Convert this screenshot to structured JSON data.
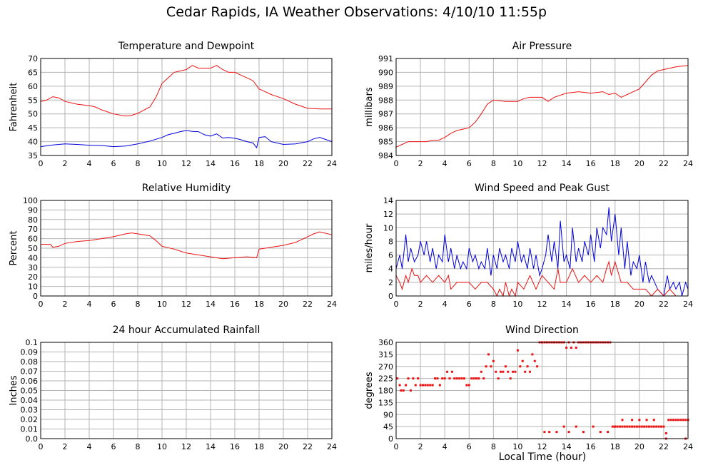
{
  "page": {
    "title": "Cedar Rapids, IA Weather Observations: 4/10/10 11:55p",
    "x_axis_label": "Local Time (hour)"
  },
  "colors": {
    "red": "#ee1111",
    "blue": "#0000dd",
    "grid": "#b4b4b4",
    "frame": "#000000"
  },
  "chart_data": [
    {
      "type": "line",
      "title": "Temperature and Dewpoint",
      "xlabel": "",
      "ylabel": "Fahrenheit",
      "xlim": [
        0,
        24
      ],
      "ylim": [
        35,
        70
      ],
      "x_ticks": [
        0,
        2,
        4,
        6,
        8,
        10,
        12,
        14,
        16,
        18,
        20,
        22,
        24
      ],
      "y_ticks": [
        35,
        40,
        45,
        50,
        55,
        60,
        65,
        70
      ],
      "grid": true,
      "series": [
        {
          "color": "#ee1111",
          "style": "line",
          "x": [
            0,
            0.5,
            1,
            1.5,
            2,
            3,
            4,
            4.5,
            5,
            6,
            7,
            7.5,
            8,
            9,
            9.5,
            10,
            10.5,
            11,
            11.5,
            12,
            12.5,
            13,
            13.5,
            14,
            14.5,
            15,
            15.5,
            16,
            16.5,
            17,
            17.5,
            18,
            18.5,
            19,
            20,
            21,
            22,
            23,
            24
          ],
          "y": [
            54.5,
            55,
            56.2,
            55.8,
            54.5,
            53.5,
            53,
            52.5,
            51.5,
            50,
            49.2,
            49.5,
            50.2,
            52.5,
            56,
            61,
            63,
            65,
            65.5,
            66,
            67.5,
            66.5,
            66.5,
            66.5,
            67.5,
            66,
            65,
            65,
            64,
            63,
            62,
            59,
            58,
            57,
            55.5,
            53.5,
            52,
            51.8,
            51.8
          ]
        },
        {
          "color": "#0000dd",
          "style": "line",
          "x": [
            0,
            1,
            2,
            3,
            4,
            5,
            6,
            7,
            8,
            9,
            10,
            10.5,
            11,
            11.5,
            12,
            12.5,
            13,
            13.5,
            14,
            14.5,
            15,
            15.5,
            16,
            16.5,
            17,
            17.5,
            17.8,
            18,
            18.5,
            19,
            20,
            21,
            22,
            22.5,
            23,
            24
          ],
          "y": [
            38.2,
            38.8,
            39.2,
            39,
            38.7,
            38.6,
            38.2,
            38.4,
            39.2,
            40.2,
            41.5,
            42.5,
            43,
            43.6,
            44,
            43.7,
            43.6,
            42.5,
            42,
            42.8,
            41.3,
            41.5,
            41.2,
            40.7,
            40,
            39.5,
            37.8,
            41.5,
            41.8,
            40,
            39,
            39.2,
            40,
            41,
            41.5,
            40
          ]
        }
      ]
    },
    {
      "type": "line",
      "title": "Air Pressure",
      "xlabel": "",
      "ylabel": "millibars",
      "xlim": [
        0,
        24
      ],
      "ylim": [
        984,
        991
      ],
      "x_ticks": [
        0,
        2,
        4,
        6,
        8,
        10,
        12,
        14,
        16,
        18,
        20,
        22,
        24
      ],
      "y_ticks": [
        984,
        985,
        986,
        987,
        988,
        989,
        990,
        991
      ],
      "grid": true,
      "series": [
        {
          "color": "#ee1111",
          "style": "line",
          "x": [
            0,
            0.5,
            1,
            1.5,
            2,
            2.5,
            3,
            3.5,
            4,
            4.5,
            5,
            5.5,
            6,
            6.5,
            7,
            7.5,
            8,
            9,
            10,
            10.5,
            11,
            11.5,
            12,
            12.5,
            13,
            14,
            15,
            16,
            17,
            17.5,
            18,
            18.5,
            19,
            20,
            20.5,
            21,
            21.5,
            22,
            23,
            24
          ],
          "y": [
            984.6,
            984.8,
            985,
            985,
            985,
            985,
            985.1,
            985.1,
            985.3,
            985.6,
            985.8,
            985.9,
            986,
            986.4,
            987,
            987.7,
            988,
            987.9,
            987.9,
            988.1,
            988.2,
            988.2,
            988.2,
            987.9,
            988.2,
            988.5,
            988.6,
            988.5,
            988.6,
            988.4,
            988.5,
            988.2,
            988.4,
            988.8,
            989.3,
            989.8,
            990.1,
            990.2,
            990.4,
            990.5
          ]
        }
      ]
    },
    {
      "type": "line",
      "title": "Relative Humidity",
      "xlabel": "",
      "ylabel": "Percent",
      "xlim": [
        0,
        24
      ],
      "ylim": [
        0,
        100
      ],
      "x_ticks": [
        0,
        2,
        4,
        6,
        8,
        10,
        12,
        14,
        16,
        18,
        20,
        22,
        24
      ],
      "y_ticks": [
        0,
        10,
        20,
        30,
        40,
        50,
        60,
        70,
        80,
        90,
        100
      ],
      "grid": true,
      "series": [
        {
          "color": "#ee1111",
          "style": "line",
          "x": [
            0,
            0.8,
            1,
            1.5,
            2,
            3,
            4,
            5,
            6,
            7,
            7.5,
            8,
            9,
            9.5,
            10,
            11,
            12,
            13,
            14,
            15,
            16,
            17,
            17.5,
            17.8,
            18,
            19,
            20,
            21,
            22,
            22.5,
            23,
            24
          ],
          "y": [
            54,
            54,
            51,
            52,
            55,
            57,
            58,
            60,
            62,
            65,
            66,
            65,
            63,
            58,
            52,
            49,
            45,
            43,
            41,
            39,
            40,
            41,
            40.5,
            40,
            49,
            51,
            53,
            56,
            62,
            65,
            67,
            64
          ]
        }
      ]
    },
    {
      "type": "line",
      "title": "Wind Speed and Peak Gust",
      "xlabel": "",
      "ylabel": "miles/hour",
      "xlim": [
        0,
        24
      ],
      "ylim": [
        0,
        14
      ],
      "x_ticks": [
        0,
        2,
        4,
        6,
        8,
        10,
        12,
        14,
        16,
        18,
        20,
        22,
        24
      ],
      "y_ticks": [
        0,
        2,
        4,
        6,
        8,
        10,
        12,
        14
      ],
      "grid": true,
      "series": [
        {
          "color": "#0000dd",
          "style": "line",
          "x": [
            0,
            0.3,
            0.5,
            0.8,
            1,
            1.2,
            1.5,
            1.8,
            2,
            2.3,
            2.5,
            2.8,
            3,
            3.3,
            3.5,
            3.8,
            4,
            4.3,
            4.5,
            4.8,
            5,
            5.3,
            5.5,
            5.8,
            6,
            6.3,
            6.5,
            6.8,
            7,
            7.3,
            7.5,
            7.8,
            8,
            8.3,
            8.5,
            8.8,
            9,
            9.3,
            9.5,
            9.8,
            10,
            10.3,
            10.5,
            10.8,
            11,
            11.3,
            11.5,
            11.8,
            12,
            12.3,
            12.5,
            12.8,
            13,
            13.3,
            13.5,
            13.8,
            14,
            14.3,
            14.5,
            14.8,
            15,
            15.3,
            15.5,
            15.8,
            16,
            16.3,
            16.5,
            16.8,
            17,
            17.3,
            17.5,
            17.7,
            18,
            18.3,
            18.5,
            18.8,
            19,
            19.3,
            19.5,
            19.8,
            20,
            20.3,
            20.5,
            20.8,
            21,
            21.5,
            22,
            22.3,
            22.5,
            22.8,
            23,
            23.3,
            23.5,
            23.8,
            24
          ],
          "y": [
            4,
            6,
            4,
            9,
            5,
            7,
            5,
            6,
            8,
            6,
            8,
            5,
            7,
            4,
            6,
            5,
            9,
            5,
            7,
            4,
            6,
            4,
            5,
            4,
            7,
            5,
            6,
            4,
            5,
            4,
            7,
            3,
            6,
            4,
            7,
            5,
            6,
            4,
            7,
            5,
            8,
            5,
            6,
            4,
            7,
            4,
            6,
            3,
            4,
            6,
            9,
            5,
            8,
            4,
            11,
            5,
            6,
            4,
            10,
            5,
            7,
            5,
            8,
            6,
            9,
            5,
            10,
            7,
            10,
            9,
            13,
            8,
            12,
            6,
            10,
            4,
            8,
            3,
            5,
            4,
            6,
            2,
            5,
            2,
            3,
            1,
            0,
            3,
            1,
            2,
            1,
            2,
            0,
            2,
            1
          ]
        },
        {
          "color": "#ee1111",
          "style": "line",
          "x": [
            0,
            0.3,
            0.5,
            0.8,
            1,
            1.3,
            1.5,
            1.8,
            2,
            2.5,
            3,
            3.5,
            4,
            4.3,
            4.5,
            5,
            5.5,
            6,
            6.5,
            7,
            7.5,
            8,
            8.3,
            8.5,
            8.8,
            9,
            9.3,
            9.5,
            9.8,
            10,
            10.5,
            11,
            11.5,
            12,
            12.5,
            13,
            13.3,
            13.5,
            14,
            14.5,
            15,
            15.5,
            16,
            16.5,
            17,
            17.3,
            17.5,
            17.7,
            18,
            18.5,
            19,
            19.5,
            20,
            20.5,
            21,
            21.5,
            22,
            22.5,
            23,
            23.5,
            24
          ],
          "y": [
            3,
            2,
            1,
            3,
            2,
            4,
            3,
            3,
            2,
            3,
            2,
            3,
            2,
            3,
            1,
            2,
            2,
            2,
            1,
            2,
            2,
            1,
            0,
            1,
            0,
            2,
            0,
            1,
            0,
            2,
            1,
            3,
            1,
            3,
            2,
            1,
            4,
            2,
            2,
            4,
            2,
            3,
            2,
            3,
            2,
            4,
            5,
            3,
            5,
            2,
            2,
            1,
            1,
            1,
            0,
            1,
            0,
            1,
            0,
            0,
            0
          ]
        }
      ]
    },
    {
      "type": "line",
      "title": "24 hour Accumulated Rainfall",
      "xlabel": "",
      "ylabel": "Inches",
      "xlim": [
        0,
        24
      ],
      "ylim": [
        0,
        0.1
      ],
      "x_ticks": [
        0,
        2,
        4,
        6,
        8,
        10,
        12,
        14,
        16,
        18,
        20,
        22,
        24
      ],
      "y_ticks": [
        "0.0",
        "0.01",
        "0.02",
        "0.03",
        "0.04",
        "0.05",
        "0.06",
        "0.07",
        "0.08",
        "0.09",
        "0.1"
      ],
      "grid": true,
      "series": [
        {
          "color": "#ee1111",
          "style": "line",
          "x": [
            0,
            24
          ],
          "y": [
            0,
            0
          ]
        }
      ]
    },
    {
      "type": "scatter",
      "title": "Wind Direction",
      "xlabel": "Local Time (hour)",
      "ylabel": "degrees",
      "xlim": [
        0,
        24
      ],
      "ylim": [
        0,
        360
      ],
      "x_ticks": [
        0,
        2,
        4,
        6,
        8,
        10,
        12,
        14,
        16,
        18,
        20,
        22,
        24
      ],
      "y_ticks": [
        0,
        45,
        90,
        135,
        180,
        225,
        270,
        315,
        360
      ],
      "grid": true,
      "series": [
        {
          "color": "#ee1111",
          "style": "points",
          "x": [
            0.1,
            0.3,
            0.4,
            0.6,
            0.8,
            1,
            1.2,
            1.4,
            1.6,
            1.8,
            2,
            2.2,
            2.4,
            2.6,
            2.8,
            3,
            3.2,
            3.4,
            3.6,
            3.8,
            4,
            4.2,
            4.4,
            4.6,
            4.8,
            5,
            5.2,
            5.4,
            5.6,
            5.8,
            6,
            6.2,
            6.4,
            6.6,
            6.8,
            7,
            7.2,
            7.4,
            7.6,
            7.8,
            8,
            8.2,
            8.4,
            8.6,
            8.8,
            9,
            9.2,
            9.4,
            9.6,
            9.8,
            10,
            10.2,
            10.4,
            10.6,
            10.8,
            11,
            11.2,
            11.4,
            11.6,
            11.8,
            12,
            12.2,
            12.4,
            12.6,
            12.8,
            13,
            13.2,
            13.4,
            13.6,
            13.8,
            14,
            14.2,
            14.4,
            14.6,
            14.8,
            15,
            15.2,
            15.4,
            15.6,
            15.8,
            16,
            16.2,
            16.4,
            16.6,
            16.8,
            17,
            17.2,
            17.4,
            17.6,
            17.8,
            18,
            18.2,
            18.4,
            18.6,
            18.8,
            19,
            19.2,
            19.4,
            19.6,
            19.8,
            20,
            20.2,
            20.4,
            20.6,
            20.8,
            21,
            21.2,
            21.4,
            21.6,
            21.8,
            22,
            22.2,
            22.4,
            22.6,
            22.8,
            23,
            23.2,
            23.4,
            23.6,
            23.8,
            24,
            12.2,
            12.6,
            13.2,
            13.8,
            14.2,
            14.8,
            15.4,
            16.2,
            16.8,
            17.4,
            18,
            18.6,
            19.4,
            20,
            20.6,
            21.2,
            22.2,
            23.8
          ],
          "y": [
            225,
            200,
            180,
            180,
            200,
            225,
            180,
            225,
            200,
            225,
            200,
            200,
            200,
            200,
            200,
            200,
            225,
            225,
            200,
            225,
            225,
            250,
            225,
            250,
            225,
            225,
            225,
            225,
            225,
            200,
            200,
            225,
            225,
            225,
            225,
            250,
            225,
            270,
            315,
            270,
            290,
            250,
            225,
            250,
            250,
            270,
            250,
            225,
            250,
            250,
            330,
            270,
            290,
            250,
            270,
            250,
            315,
            290,
            270,
            360,
            360,
            360,
            360,
            360,
            360,
            360,
            360,
            360,
            360,
            360,
            340,
            360,
            340,
            360,
            340,
            360,
            360,
            360,
            360,
            360,
            360,
            360,
            360,
            360,
            360,
            360,
            360,
            360,
            360,
            45,
            45,
            45,
            45,
            45,
            45,
            45,
            45,
            45,
            45,
            45,
            45,
            45,
            45,
            45,
            45,
            45,
            45,
            45,
            45,
            45,
            45,
            20,
            70,
            70,
            70,
            70,
            70,
            70,
            70,
            70,
            70,
            25,
            25,
            25,
            45,
            25,
            45,
            25,
            45,
            25,
            25,
            45,
            70,
            70,
            70,
            70,
            70,
            0,
            0
          ]
        }
      ]
    }
  ]
}
